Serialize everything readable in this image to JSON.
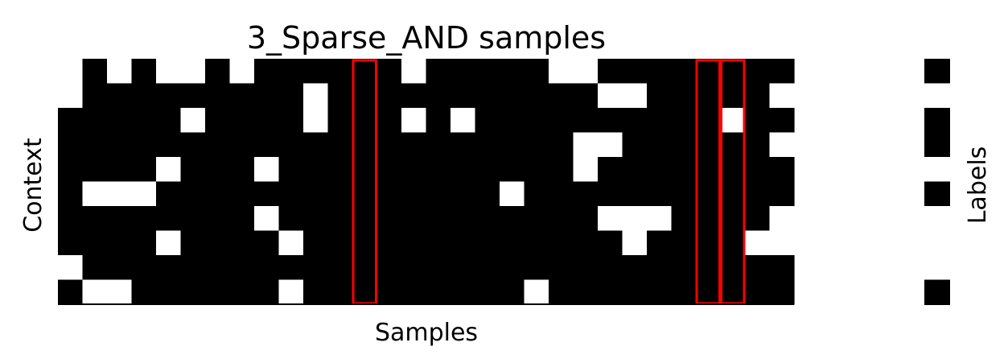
{
  "chart_data": [
    {
      "type": "heatmap",
      "title": "3_Sparse_AND samples",
      "xlabel": "Samples",
      "ylabel": "Context",
      "colormap": "binary (0 = white, 1 = black)",
      "rows": 10,
      "cols": 30,
      "matrix": [
        [
          0,
          1,
          0,
          1,
          0,
          0,
          1,
          0,
          1,
          1,
          1,
          1,
          1,
          1,
          0,
          1,
          1,
          1,
          1,
          1,
          0,
          0,
          1,
          1,
          1,
          1,
          1,
          1,
          1,
          1
        ],
        [
          0,
          1,
          1,
          1,
          1,
          1,
          1,
          1,
          1,
          1,
          0,
          1,
          1,
          1,
          1,
          1,
          1,
          1,
          1,
          1,
          1,
          1,
          0,
          0,
          1,
          1,
          1,
          1,
          1,
          0
        ],
        [
          1,
          1,
          1,
          1,
          1,
          0,
          1,
          1,
          1,
          1,
          0,
          1,
          1,
          1,
          0,
          1,
          0,
          1,
          1,
          1,
          1,
          1,
          1,
          1,
          1,
          1,
          1,
          0,
          1,
          1
        ],
        [
          1,
          1,
          1,
          1,
          1,
          1,
          1,
          1,
          1,
          1,
          1,
          1,
          1,
          1,
          1,
          1,
          1,
          1,
          1,
          1,
          1,
          0,
          0,
          1,
          1,
          1,
          1,
          1,
          1,
          0
        ],
        [
          1,
          1,
          1,
          1,
          0,
          1,
          1,
          1,
          0,
          1,
          1,
          1,
          1,
          1,
          1,
          1,
          1,
          1,
          1,
          1,
          1,
          0,
          1,
          1,
          1,
          1,
          1,
          1,
          1,
          1
        ],
        [
          1,
          0,
          0,
          0,
          1,
          1,
          1,
          1,
          1,
          1,
          1,
          1,
          1,
          1,
          1,
          1,
          1,
          1,
          0,
          1,
          1,
          1,
          1,
          1,
          1,
          1,
          1,
          1,
          1,
          1
        ],
        [
          1,
          1,
          1,
          1,
          1,
          1,
          1,
          1,
          0,
          1,
          1,
          1,
          1,
          1,
          1,
          1,
          1,
          1,
          1,
          1,
          1,
          1,
          0,
          0,
          0,
          1,
          1,
          1,
          1,
          0
        ],
        [
          1,
          1,
          1,
          1,
          0,
          1,
          1,
          1,
          1,
          0,
          1,
          1,
          1,
          1,
          1,
          1,
          1,
          1,
          1,
          1,
          1,
          1,
          1,
          0,
          1,
          1,
          1,
          1,
          0,
          0
        ],
        [
          0,
          1,
          1,
          1,
          1,
          1,
          1,
          1,
          1,
          1,
          1,
          1,
          1,
          1,
          1,
          1,
          1,
          1,
          1,
          1,
          1,
          1,
          1,
          1,
          1,
          1,
          1,
          1,
          1,
          1
        ],
        [
          1,
          0,
          0,
          1,
          1,
          1,
          1,
          1,
          1,
          0,
          1,
          1,
          1,
          1,
          1,
          1,
          1,
          1,
          1,
          0,
          1,
          1,
          1,
          1,
          1,
          1,
          1,
          1,
          1,
          1
        ]
      ],
      "highlighted_columns": [
        12,
        26,
        27
      ],
      "highlight_color": "#ff0000"
    },
    {
      "type": "heatmap",
      "ylabel": "Labels",
      "colormap": "binary (0 = white, 1 = black)",
      "rows": 10,
      "cols": 1,
      "values": [
        1,
        0,
        1,
        1,
        0,
        1,
        0,
        0,
        0,
        1
      ]
    }
  ]
}
